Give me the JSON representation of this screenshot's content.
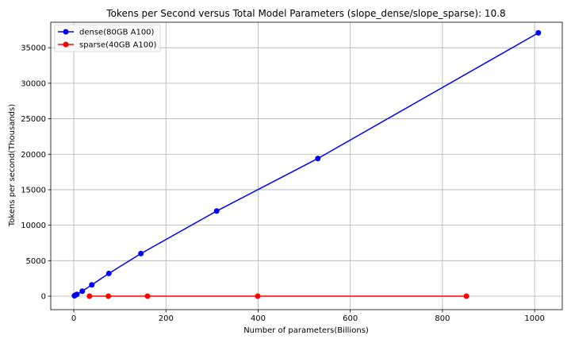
{
  "chart_data": {
    "type": "line",
    "title": "Tokens per Second versus Total Model Parameters (slope_dense/slope_sparse): 10.8",
    "xlabel": "Number of parameters(Billions)",
    "ylabel": "Tokens per second(Thousands)",
    "xlim": [
      -50,
      1060
    ],
    "ylim": [
      -1900,
      38600
    ],
    "xticks": [
      0,
      200,
      400,
      600,
      800,
      1000
    ],
    "yticks": [
      0,
      5000,
      10000,
      15000,
      20000,
      25000,
      30000,
      35000
    ],
    "grid": true,
    "legend_position": "top-left",
    "series": [
      {
        "name": "dense(80GB A100)",
        "color": "#0000ff",
        "x": [
          1.3,
          2.7,
          6.7,
          18.4,
          39.1,
          76.1,
          145.6,
          310.1,
          529.6,
          1008
        ],
        "y": [
          60,
          110,
          250,
          700,
          1600,
          3200,
          6000,
          12000,
          19400,
          37100
        ]
      },
      {
        "name": "sparse(40GB A100)",
        "color": "#ff0000",
        "x": [
          34,
          75,
          160,
          399,
          852
        ],
        "y": [
          0,
          0,
          0,
          0,
          0
        ]
      }
    ]
  }
}
